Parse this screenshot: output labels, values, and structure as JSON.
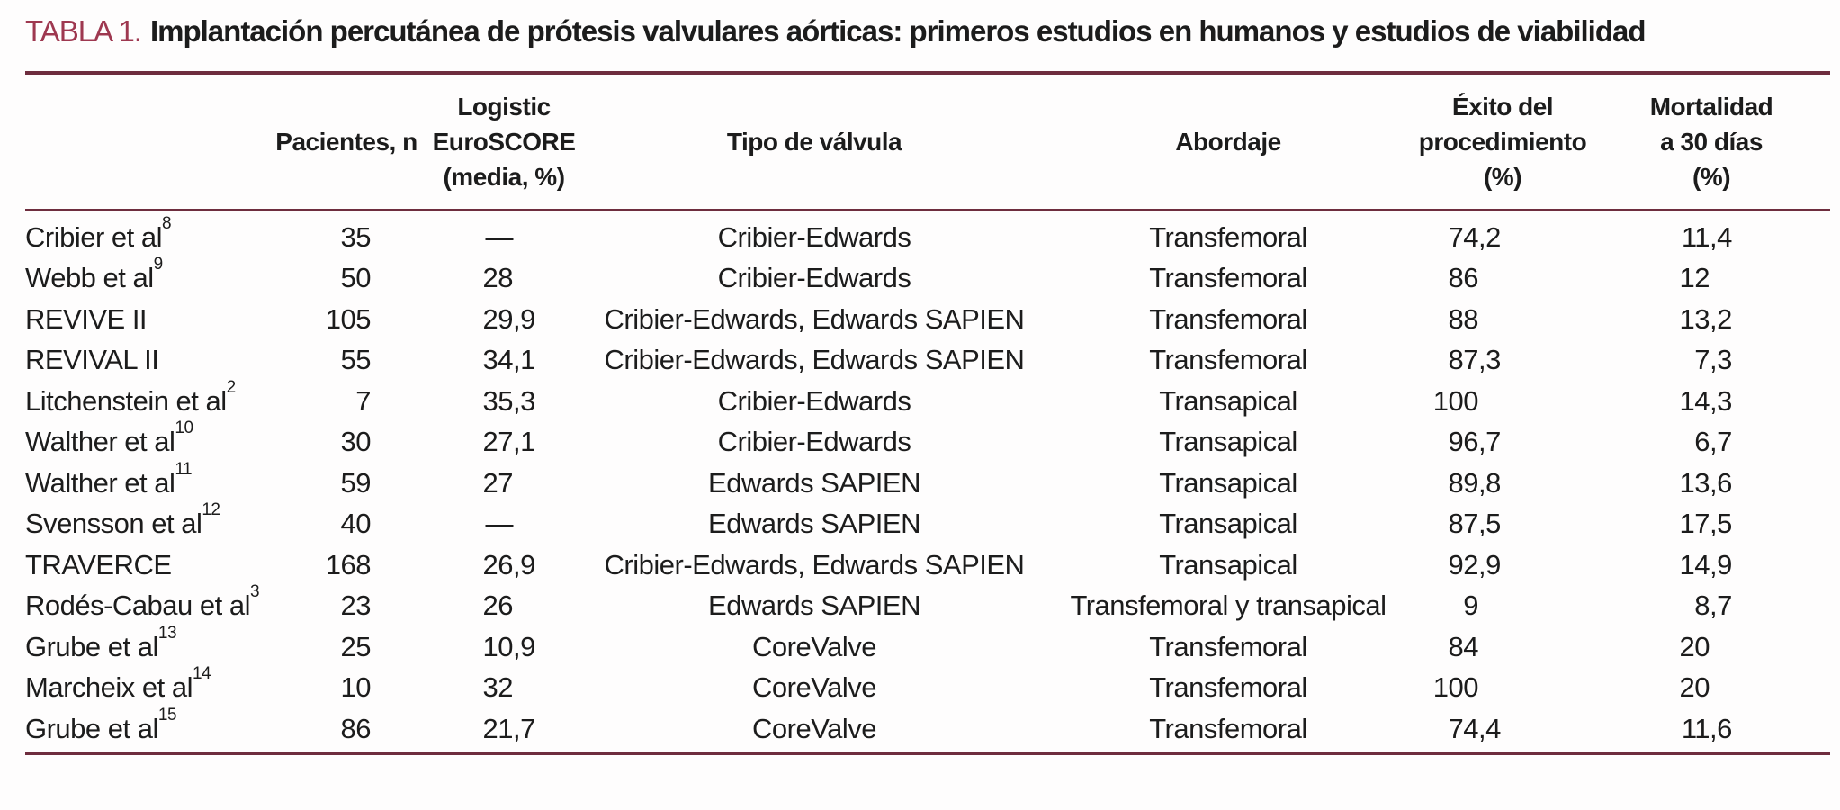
{
  "colors": {
    "accent": "#9E3850",
    "rule": "#6E2D3E",
    "ink": "#1c1c1c"
  },
  "title": {
    "label": "TABLA 1.",
    "text": "Implantación percutánea de prótesis valvulares aórticas: primeros estudios en humanos y estudios de viabilidad"
  },
  "table": {
    "columns": [
      {
        "id": "study",
        "lines": []
      },
      {
        "id": "patients",
        "lines": [
          "Pacientes, n"
        ]
      },
      {
        "id": "euroscore",
        "lines": [
          "Logistic",
          "EuroSCORE",
          "(media, %)"
        ]
      },
      {
        "id": "valve",
        "lines": [
          "Tipo de válvula"
        ]
      },
      {
        "id": "approach",
        "lines": [
          "Abordaje"
        ]
      },
      {
        "id": "success",
        "lines": [
          "Éxito del",
          "procedimiento",
          "(%)"
        ]
      },
      {
        "id": "mortality",
        "lines": [
          "Mortalidad",
          "a 30 días",
          "(%)"
        ]
      }
    ],
    "rows": [
      {
        "study": "Cribier et al",
        "ref": "8",
        "patients": "35",
        "euroscore": "—",
        "valve": "Cribier-Edwards",
        "approach": "Transfemoral",
        "success": "74,2",
        "mortality": "11,4"
      },
      {
        "study": "Webb et al",
        "ref": "9",
        "patients": "50",
        "euroscore": "28",
        "valve": "Cribier-Edwards",
        "approach": "Transfemoral",
        "success": "86",
        "mortality": "12"
      },
      {
        "study": "REVIVE II",
        "ref": "",
        "patients": "105",
        "euroscore": "29,9",
        "valve": "Cribier-Edwards, Edwards SAPIEN",
        "approach": "Transfemoral",
        "success": "88",
        "mortality": "13,2"
      },
      {
        "study": "REVIVAL II",
        "ref": "",
        "patients": "55",
        "euroscore": "34,1",
        "valve": "Cribier-Edwards, Edwards SAPIEN",
        "approach": "Transfemoral",
        "success": "87,3",
        "mortality": "7,3"
      },
      {
        "study": "Litchenstein et al",
        "ref": "2",
        "patients": "7",
        "euroscore": "35,3",
        "valve": "Cribier-Edwards",
        "approach": "Transapical",
        "success": "100",
        "mortality": "14,3"
      },
      {
        "study": "Walther et al",
        "ref": "10",
        "patients": "30",
        "euroscore": "27,1",
        "valve": "Cribier-Edwards",
        "approach": "Transapical",
        "success": "96,7",
        "mortality": "6,7"
      },
      {
        "study": "Walther et al",
        "ref": "11",
        "patients": "59",
        "euroscore": "27",
        "valve": "Edwards SAPIEN",
        "approach": "Transapical",
        "success": "89,8",
        "mortality": "13,6"
      },
      {
        "study": "Svensson et al",
        "ref": "12",
        "patients": "40",
        "euroscore": "—",
        "valve": "Edwards SAPIEN",
        "approach": "Transapical",
        "success": "87,5",
        "mortality": "17,5"
      },
      {
        "study": "TRAVERCE",
        "ref": "",
        "patients": "168",
        "euroscore": "26,9",
        "valve": "Cribier-Edwards, Edwards SAPIEN",
        "approach": "Transapical",
        "success": "92,9",
        "mortality": "14,9"
      },
      {
        "study": "Rodés-Cabau et al",
        "ref": "3",
        "patients": "23",
        "euroscore": "26",
        "valve": "Edwards SAPIEN",
        "approach": "Transfemoral y transapical",
        "success": "9",
        "mortality": "8,7"
      },
      {
        "study": "Grube et al",
        "ref": "13",
        "patients": "25",
        "euroscore": "10,9",
        "valve": "CoreValve",
        "approach": "Transfemoral",
        "success": "84",
        "mortality": "20"
      },
      {
        "study": "Marcheix et al",
        "ref": "14",
        "patients": "10",
        "euroscore": "32",
        "valve": "CoreValve",
        "approach": "Transfemoral",
        "success": "100",
        "mortality": "20"
      },
      {
        "study": "Grube et al",
        "ref": "15",
        "patients": "86",
        "euroscore": "21,7",
        "valve": "CoreValve",
        "approach": "Transfemoral",
        "success": "74,4",
        "mortality": "11,6"
      }
    ]
  }
}
